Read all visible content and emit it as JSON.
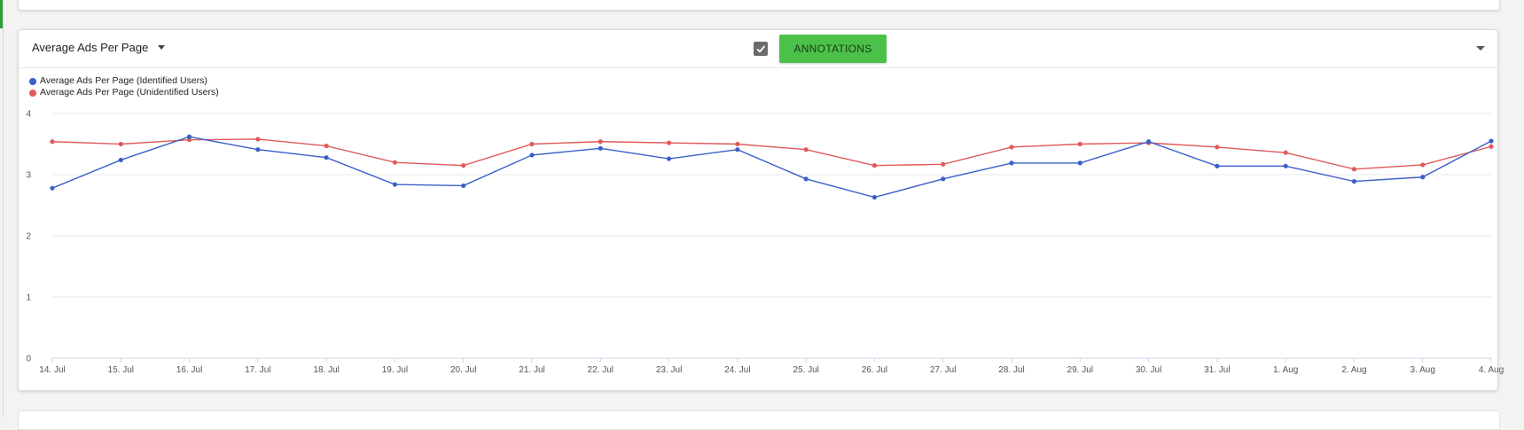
{
  "panel": {
    "metric_label": "Average Ads Per Page",
    "annotations_checked": true,
    "annotations_label": "ANNOTATIONS"
  },
  "colors": {
    "identified": "#3a5fc8",
    "unidentified": "#e05a5a",
    "button": "#4cc14a"
  },
  "chart_data": {
    "type": "line",
    "x": [
      "14. Jul",
      "15. Jul",
      "16. Jul",
      "17. Jul",
      "18. Jul",
      "19. Jul",
      "20. Jul",
      "21. Jul",
      "22. Jul",
      "23. Jul",
      "24. Jul",
      "25. Jul",
      "26. Jul",
      "27. Jul",
      "28. Jul",
      "29. Jul",
      "30. Jul",
      "31. Jul",
      "1. Aug",
      "2. Aug",
      "3. Aug",
      "4. Aug"
    ],
    "ylim": [
      0,
      4
    ],
    "yticks": [
      0,
      1,
      2,
      3,
      4
    ],
    "grid": true,
    "legend_position": "top-left",
    "series": [
      {
        "name": "Average Ads Per Page (Identified Users)",
        "values": [
          2.78,
          3.24,
          3.62,
          3.41,
          3.28,
          2.84,
          2.82,
          3.32,
          3.43,
          3.26,
          3.41,
          2.93,
          2.63,
          2.93,
          3.19,
          3.19,
          3.54,
          3.14,
          3.14,
          2.89,
          2.96,
          3.55
        ]
      },
      {
        "name": "Average Ads Per Page (Unidentified Users)",
        "values": [
          3.54,
          3.5,
          3.57,
          3.58,
          3.47,
          3.2,
          3.15,
          3.5,
          3.54,
          3.52,
          3.5,
          3.41,
          3.15,
          3.17,
          3.45,
          3.5,
          3.52,
          3.45,
          3.36,
          3.09,
          3.16,
          3.46
        ]
      }
    ]
  }
}
